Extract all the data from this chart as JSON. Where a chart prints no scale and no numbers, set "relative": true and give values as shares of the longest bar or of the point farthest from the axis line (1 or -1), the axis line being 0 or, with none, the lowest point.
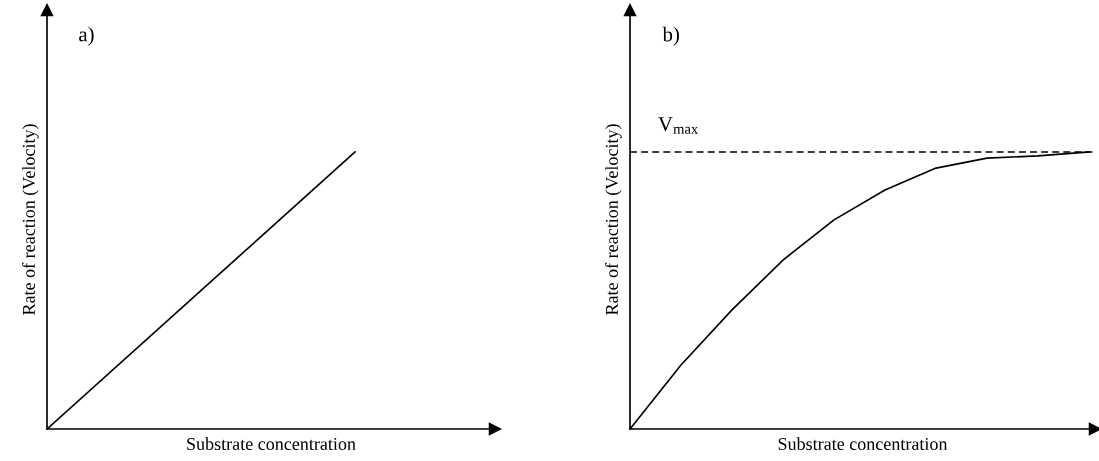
{
  "chart_data": [
    {
      "type": "line",
      "relative": true,
      "xlabel": "Substrate concentration",
      "ylabel": "Rate of reaction (Velocity)",
      "annotations": [
        "a)"
      ],
      "categories": [
        null,
        null
      ],
      "series": [
        {
          "color": "#000000",
          "values": [
            0,
            1
          ]
        }
      ]
    },
    {
      "type": "line",
      "relative": true,
      "xlabel": "Substrate concentration",
      "ylabel": "Rate of reaction (Velocity)",
      "annotations": [
        "b)"
      ],
      "categories": [
        null,
        null,
        null,
        null,
        null,
        null,
        null,
        null,
        null,
        null
      ],
      "series": [
        {
          "color": "#000000",
          "values": [
            0,
            0.231,
            0.43,
            0.61,
            0.755,
            0.863,
            0.942,
            0.978,
            0.986,
            1.0
          ]
        }
      ],
      "ref_lines": [
        {
          "axis": "y",
          "value": 1,
          "label": "V$_{max}$",
          "color": "#000000",
          "line_style": "dashed"
        }
      ]
    }
  ]
}
